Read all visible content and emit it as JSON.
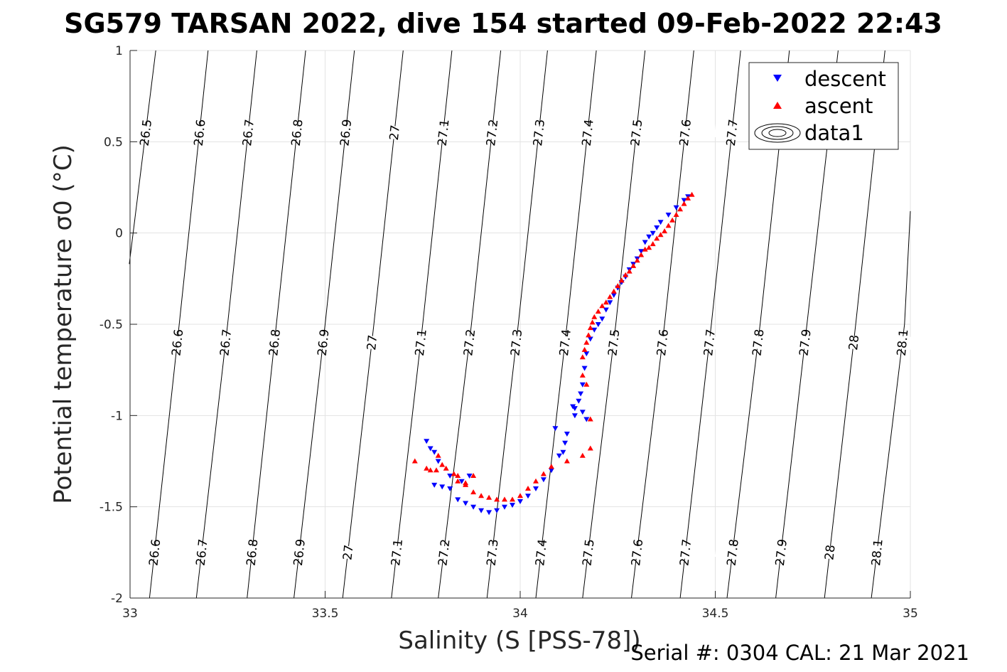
{
  "chart_data": {
    "type": "scatter",
    "title": "SG579 TARSAN 2022, dive 154 started 09-Feb-2022 22:43",
    "xlabel": "Salinity (S [PSS-78])",
    "ylabel": "Potential temperature σ0 (°C)",
    "xlim": [
      33,
      35
    ],
    "ylim": [
      -2,
      1
    ],
    "x_ticks": [
      "33",
      "33.5",
      "34",
      "34.5",
      "35"
    ],
    "y_ticks": [
      "1",
      "0.5",
      "0",
      "-0.5",
      "-1",
      "-1.5",
      "-2"
    ],
    "grid": true,
    "legend_position": "top-right",
    "series": [
      {
        "name": "descent",
        "marker": "triangle-down",
        "color": "#0000ff",
        "points": [
          [
            34.43,
            0.2
          ],
          [
            34.42,
            0.18
          ],
          [
            34.4,
            0.14
          ],
          [
            34.38,
            0.1
          ],
          [
            34.36,
            0.06
          ],
          [
            34.35,
            0.03
          ],
          [
            34.34,
            0.0
          ],
          [
            34.33,
            -0.02
          ],
          [
            34.32,
            -0.05
          ],
          [
            34.31,
            -0.1
          ],
          [
            34.3,
            -0.14
          ],
          [
            34.29,
            -0.17
          ],
          [
            34.28,
            -0.2
          ],
          [
            34.27,
            -0.24
          ],
          [
            34.26,
            -0.27
          ],
          [
            34.25,
            -0.3
          ],
          [
            34.24,
            -0.34
          ],
          [
            34.23,
            -0.38
          ],
          [
            34.22,
            -0.42
          ],
          [
            34.21,
            -0.47
          ],
          [
            34.2,
            -0.5
          ],
          [
            34.19,
            -0.53
          ],
          [
            34.18,
            -0.58
          ],
          [
            34.17,
            -0.66
          ],
          [
            34.165,
            -0.74
          ],
          [
            34.16,
            -0.83
          ],
          [
            34.155,
            -0.88
          ],
          [
            34.15,
            -0.92
          ],
          [
            34.14,
            -0.96
          ],
          [
            34.135,
            -0.95
          ],
          [
            34.14,
            -1.0
          ],
          [
            34.16,
            -0.98
          ],
          [
            34.17,
            -1.02
          ],
          [
            34.115,
            -1.15
          ],
          [
            34.11,
            -1.2
          ],
          [
            34.12,
            -1.1
          ],
          [
            34.1,
            -1.22
          ],
          [
            34.09,
            -1.07
          ],
          [
            34.08,
            -1.3
          ],
          [
            34.06,
            -1.35
          ],
          [
            34.04,
            -1.4
          ],
          [
            34.02,
            -1.44
          ],
          [
            34.0,
            -1.47
          ],
          [
            33.98,
            -1.49
          ],
          [
            33.96,
            -1.5
          ],
          [
            33.94,
            -1.52
          ],
          [
            33.92,
            -1.53
          ],
          [
            33.9,
            -1.52
          ],
          [
            33.88,
            -1.5
          ],
          [
            33.86,
            -1.48
          ],
          [
            33.84,
            -1.46
          ],
          [
            33.82,
            -1.4
          ],
          [
            33.8,
            -1.39
          ],
          [
            33.78,
            -1.38
          ],
          [
            33.76,
            -1.14
          ],
          [
            33.77,
            -1.18
          ],
          [
            33.78,
            -1.2
          ],
          [
            33.79,
            -1.25
          ],
          [
            33.82,
            -1.33
          ],
          [
            33.85,
            -1.36
          ],
          [
            33.87,
            -1.33
          ]
        ]
      },
      {
        "name": "ascent",
        "marker": "triangle-up",
        "color": "#ff0000",
        "points": [
          [
            34.44,
            0.21
          ],
          [
            34.43,
            0.19
          ],
          [
            34.42,
            0.16
          ],
          [
            34.41,
            0.13
          ],
          [
            34.4,
            0.1
          ],
          [
            34.39,
            0.07
          ],
          [
            34.38,
            0.04
          ],
          [
            34.37,
            0.01
          ],
          [
            34.36,
            -0.01
          ],
          [
            34.35,
            -0.03
          ],
          [
            34.34,
            -0.06
          ],
          [
            34.33,
            -0.08
          ],
          [
            34.32,
            -0.09
          ],
          [
            34.31,
            -0.12
          ],
          [
            34.3,
            -0.15
          ],
          [
            34.29,
            -0.18
          ],
          [
            34.28,
            -0.21
          ],
          [
            34.27,
            -0.23
          ],
          [
            34.26,
            -0.26
          ],
          [
            34.25,
            -0.29
          ],
          [
            34.24,
            -0.32
          ],
          [
            34.23,
            -0.35
          ],
          [
            34.22,
            -0.38
          ],
          [
            34.21,
            -0.4
          ],
          [
            34.2,
            -0.43
          ],
          [
            34.19,
            -0.46
          ],
          [
            34.185,
            -0.49
          ],
          [
            34.18,
            -0.52
          ],
          [
            34.175,
            -0.56
          ],
          [
            34.17,
            -0.6
          ],
          [
            34.165,
            -0.64
          ],
          [
            34.16,
            -0.68
          ],
          [
            34.16,
            -0.78
          ],
          [
            34.17,
            -0.83
          ],
          [
            34.18,
            -1.02
          ],
          [
            34.18,
            -1.18
          ],
          [
            34.16,
            -1.22
          ],
          [
            34.12,
            -1.25
          ],
          [
            34.08,
            -1.28
          ],
          [
            34.06,
            -1.32
          ],
          [
            34.04,
            -1.36
          ],
          [
            34.02,
            -1.4
          ],
          [
            34.0,
            -1.44
          ],
          [
            33.98,
            -1.46
          ],
          [
            33.96,
            -1.46
          ],
          [
            33.94,
            -1.46
          ],
          [
            33.92,
            -1.45
          ],
          [
            33.9,
            -1.44
          ],
          [
            33.88,
            -1.42
          ],
          [
            33.86,
            -1.38
          ],
          [
            33.84,
            -1.36
          ],
          [
            33.83,
            -1.32
          ],
          [
            33.81,
            -1.29
          ],
          [
            33.8,
            -1.27
          ],
          [
            33.79,
            -1.22
          ],
          [
            33.785,
            -1.3
          ],
          [
            33.77,
            -1.3
          ],
          [
            33.76,
            -1.29
          ],
          [
            33.73,
            -1.25
          ],
          [
            33.84,
            -1.33
          ],
          [
            33.86,
            -1.37
          ],
          [
            33.88,
            -1.33
          ]
        ]
      }
    ],
    "density_contours": [
      {
        "label": "26.5"
      },
      {
        "label": "26.6"
      },
      {
        "label": "26.7"
      },
      {
        "label": "26.8"
      },
      {
        "label": "26.9"
      },
      {
        "label": "27"
      },
      {
        "label": "27.1"
      },
      {
        "label": "27.2"
      },
      {
        "label": "27.3"
      },
      {
        "label": "27.4"
      },
      {
        "label": "27.5"
      },
      {
        "label": "27.6"
      },
      {
        "label": "27.7"
      },
      {
        "label": "27.8"
      },
      {
        "label": "27.9"
      },
      {
        "label": "28"
      },
      {
        "label": "28.1"
      }
    ],
    "contour_samples": [
      {
        "label": "26.5",
        "pts": [
          [
            32.998,
            -0.17
          ],
          [
            33.066,
            1.0
          ]
        ]
      },
      {
        "label": "26.6",
        "pts": [
          [
            33.05,
            -2.0
          ],
          [
            33.126,
            -0.5
          ],
          [
            33.2,
            1.0
          ]
        ]
      },
      {
        "label": "26.7",
        "pts": [
          [
            33.17,
            -2.0
          ],
          [
            33.25,
            -0.5
          ],
          [
            33.325,
            1.0
          ]
        ]
      },
      {
        "label": "26.8",
        "pts": [
          [
            33.3,
            -2.0
          ],
          [
            33.375,
            -0.5
          ],
          [
            33.45,
            1.0
          ]
        ]
      },
      {
        "label": "26.9",
        "pts": [
          [
            33.42,
            -2.0
          ],
          [
            33.5,
            -0.5
          ],
          [
            33.575,
            1.0
          ]
        ]
      },
      {
        "label": "27",
        "pts": [
          [
            33.545,
            -2.0
          ],
          [
            33.625,
            -0.5
          ],
          [
            33.7,
            1.0
          ]
        ]
      },
      {
        "label": "27.1",
        "pts": [
          [
            33.67,
            -2.0
          ],
          [
            33.75,
            -0.5
          ],
          [
            33.825,
            1.0
          ]
        ]
      },
      {
        "label": "27.2",
        "pts": [
          [
            33.79,
            -2.0
          ],
          [
            33.875,
            -0.5
          ],
          [
            33.95,
            1.0
          ]
        ]
      },
      {
        "label": "27.3",
        "pts": [
          [
            33.915,
            -2.0
          ],
          [
            33.995,
            -0.5
          ],
          [
            34.07,
            1.0
          ]
        ]
      },
      {
        "label": "27.4",
        "pts": [
          [
            34.04,
            -2.0
          ],
          [
            34.12,
            -0.5
          ],
          [
            34.195,
            1.0
          ]
        ]
      },
      {
        "label": "27.5",
        "pts": [
          [
            34.16,
            -2.0
          ],
          [
            34.245,
            -0.5
          ],
          [
            34.32,
            1.0
          ]
        ]
      },
      {
        "label": "27.6",
        "pts": [
          [
            34.285,
            -2.0
          ],
          [
            34.37,
            -0.5
          ],
          [
            34.445,
            1.0
          ]
        ]
      },
      {
        "label": "27.7",
        "pts": [
          [
            34.41,
            -2.0
          ],
          [
            34.49,
            -0.5
          ],
          [
            34.565,
            1.0
          ]
        ]
      },
      {
        "label": "27.8",
        "pts": [
          [
            34.53,
            -2.0
          ],
          [
            34.615,
            -0.5
          ],
          [
            34.69,
            1.0
          ]
        ]
      },
      {
        "label": "27.9",
        "pts": [
          [
            34.655,
            -2.0
          ],
          [
            34.735,
            -0.5
          ],
          [
            34.815,
            1.0
          ]
        ]
      },
      {
        "label": "28",
        "pts": [
          [
            34.78,
            -2.0
          ],
          [
            34.86,
            -0.5
          ],
          [
            34.935,
            1.0
          ]
        ]
      },
      {
        "label": "28.1",
        "pts": [
          [
            34.9,
            -2.0
          ],
          [
            34.985,
            -0.5
          ],
          [
            35.0,
            0.12
          ]
        ]
      }
    ],
    "legend_entries": [
      "descent",
      "ascent",
      "data1"
    ],
    "footer": "Serial #: 0304  CAL: 21 Mar 2021"
  }
}
